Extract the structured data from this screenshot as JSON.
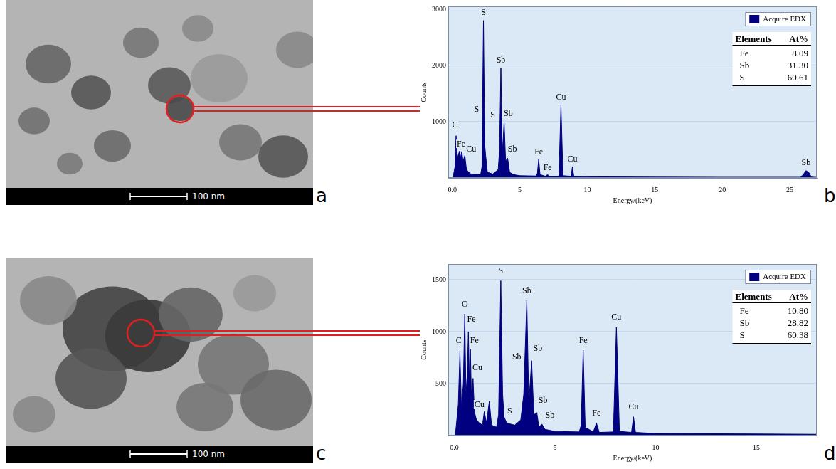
{
  "images": [
    {
      "panel_letter": "a",
      "scale_bar": "100 nm"
    },
    {
      "panel_letter": "c",
      "scale_bar": "100 nm"
    }
  ],
  "chart_data": [
    {
      "type": "area",
      "panel_letter": "b",
      "x_label": "Energy/(keV)",
      "y_label": "Counts",
      "x": [
        0.05,
        0.2,
        0.28,
        0.35,
        0.45,
        0.55,
        0.62,
        0.7,
        0.8,
        0.93,
        1.05,
        1.3,
        1.5,
        1.75,
        2.1,
        2.2,
        2.31,
        2.4,
        2.47,
        2.6,
        3.0,
        3.4,
        3.5,
        3.6,
        3.7,
        3.84,
        3.95,
        4.1,
        4.25,
        4.5,
        5.0,
        6.2,
        6.3,
        6.4,
        6.5,
        6.9,
        7.06,
        7.2,
        7.9,
        8.05,
        8.2,
        8.8,
        8.9,
        9.0,
        10,
        15,
        20,
        25.8,
        26.0,
        26.2,
        26.4,
        26.6,
        27
      ],
      "series": [
        {
          "name": "Acquire EDX",
          "color": "#000080",
          "values": [
            0,
            200,
            750,
            300,
            420,
            480,
            350,
            470,
            300,
            400,
            150,
            80,
            60,
            70,
            60,
            200,
            2800,
            600,
            400,
            100,
            70,
            150,
            500,
            1950,
            400,
            1000,
            300,
            350,
            100,
            60,
            40,
            35,
            80,
            330,
            60,
            30,
            60,
            25,
            30,
            1300,
            40,
            30,
            200,
            30,
            20,
            15,
            12,
            12,
            60,
            130,
            100,
            15,
            10
          ]
        }
      ],
      "xlim": [
        -0.3,
        27
      ],
      "xticks": [
        {
          "value": 0,
          "label": "0.0"
        },
        5,
        10,
        15,
        20,
        25
      ],
      "ylim": [
        0,
        3050
      ],
      "yticks": [
        1000,
        2000,
        3000
      ],
      "grid": true,
      "legend": "upper right",
      "annotations": [
        {
          "text": "S",
          "x": 2.31,
          "y": 2880
        },
        {
          "text": "Sb",
          "x": 3.6,
          "y": 2030
        },
        {
          "text": "S",
          "x": 1.8,
          "y": 1150
        },
        {
          "text": "S",
          "x": 3.0,
          "y": 1050
        },
        {
          "text": "Sb",
          "x": 4.15,
          "y": 1080
        },
        {
          "text": "Sb",
          "x": 4.45,
          "y": 450
        },
        {
          "text": "C",
          "x": 0.2,
          "y": 880
        },
        {
          "text": "Fe",
          "x": 0.65,
          "y": 530
        },
        {
          "text": "Cu",
          "x": 1.4,
          "y": 450
        },
        {
          "text": "Fe",
          "x": 6.4,
          "y": 400
        },
        {
          "text": "Fe",
          "x": 7.06,
          "y": 120
        },
        {
          "text": "Cu",
          "x": 8.05,
          "y": 1370
        },
        {
          "text": "Cu",
          "x": 8.9,
          "y": 270
        },
        {
          "text": "Sb",
          "x": 26.2,
          "y": 200
        }
      ],
      "table": {
        "columns": [
          "Elements",
          "At%"
        ],
        "rows": [
          [
            "Fe",
            "8.09"
          ],
          [
            "Sb",
            "31.30"
          ],
          [
            "S",
            "60.61"
          ]
        ]
      }
    },
    {
      "type": "area",
      "panel_letter": "d",
      "x_label": "Energy/(keV)",
      "y_label": "Counts",
      "x": [
        0.05,
        0.2,
        0.28,
        0.36,
        0.45,
        0.52,
        0.58,
        0.65,
        0.7,
        0.75,
        0.8,
        0.86,
        0.93,
        1.0,
        1.1,
        1.25,
        1.4,
        1.49,
        1.6,
        1.74,
        1.85,
        2.1,
        2.2,
        2.31,
        2.4,
        2.47,
        2.6,
        3.0,
        3.3,
        3.45,
        3.6,
        3.7,
        3.84,
        3.95,
        4.1,
        4.2,
        4.35,
        4.5,
        5.0,
        6.2,
        6.3,
        6.4,
        6.5,
        6.9,
        7.06,
        7.2,
        7.9,
        8.05,
        8.2,
        8.8,
        8.9,
        9.0,
        10,
        15,
        18
      ],
      "series": [
        {
          "name": "Acquire EDX",
          "color": "#000080",
          "values": [
            0,
            300,
            800,
            250,
            500,
            1170,
            400,
            600,
            1000,
            500,
            830,
            300,
            550,
            230,
            150,
            120,
            100,
            230,
            120,
            330,
            100,
            80,
            200,
            1490,
            400,
            180,
            120,
            100,
            150,
            400,
            1300,
            300,
            720,
            200,
            220,
            80,
            110,
            60,
            40,
            35,
            100,
            820,
            80,
            35,
            120,
            30,
            35,
            1040,
            40,
            30,
            180,
            30,
            20,
            15,
            12
          ]
        }
      ],
      "xlim": [
        -0.3,
        18
      ],
      "xticks": [
        {
          "value": 0,
          "label": "0.0"
        },
        5,
        10,
        15
      ],
      "ylim": [
        0,
        1650
      ],
      "yticks": [
        500,
        1000,
        1500
      ],
      "grid": true,
      "legend": "upper right",
      "annotations": [
        {
          "text": "C",
          "x": 0.22,
          "y": 880
        },
        {
          "text": "O",
          "x": 0.52,
          "y": 1230
        },
        {
          "text": "Fe",
          "x": 0.85,
          "y": 1080
        },
        {
          "text": "Fe",
          "x": 1.0,
          "y": 880
        },
        {
          "text": "Cu",
          "x": 1.15,
          "y": 620
        },
        {
          "text": "Cu",
          "x": 1.25,
          "y": 260
        },
        {
          "text": "S",
          "x": 2.31,
          "y": 1550
        },
        {
          "text": "S",
          "x": 2.75,
          "y": 200
        },
        {
          "text": "Sb",
          "x": 3.6,
          "y": 1360
        },
        {
          "text": "Sb",
          "x": 3.1,
          "y": 720
        },
        {
          "text": "Sb",
          "x": 4.15,
          "y": 800
        },
        {
          "text": "Sb",
          "x": 4.4,
          "y": 300
        },
        {
          "text": "Sb",
          "x": 4.75,
          "y": 160
        },
        {
          "text": "Fe",
          "x": 6.4,
          "y": 880
        },
        {
          "text": "Fe",
          "x": 7.06,
          "y": 180
        },
        {
          "text": "Cu",
          "x": 8.05,
          "y": 1100
        },
        {
          "text": "Cu",
          "x": 8.9,
          "y": 240
        }
      ],
      "table": {
        "columns": [
          "Elements",
          "At%"
        ],
        "rows": [
          [
            "Fe",
            "10.80"
          ],
          [
            "Sb",
            "28.82"
          ],
          [
            "S",
            "60.38"
          ]
        ]
      }
    }
  ]
}
